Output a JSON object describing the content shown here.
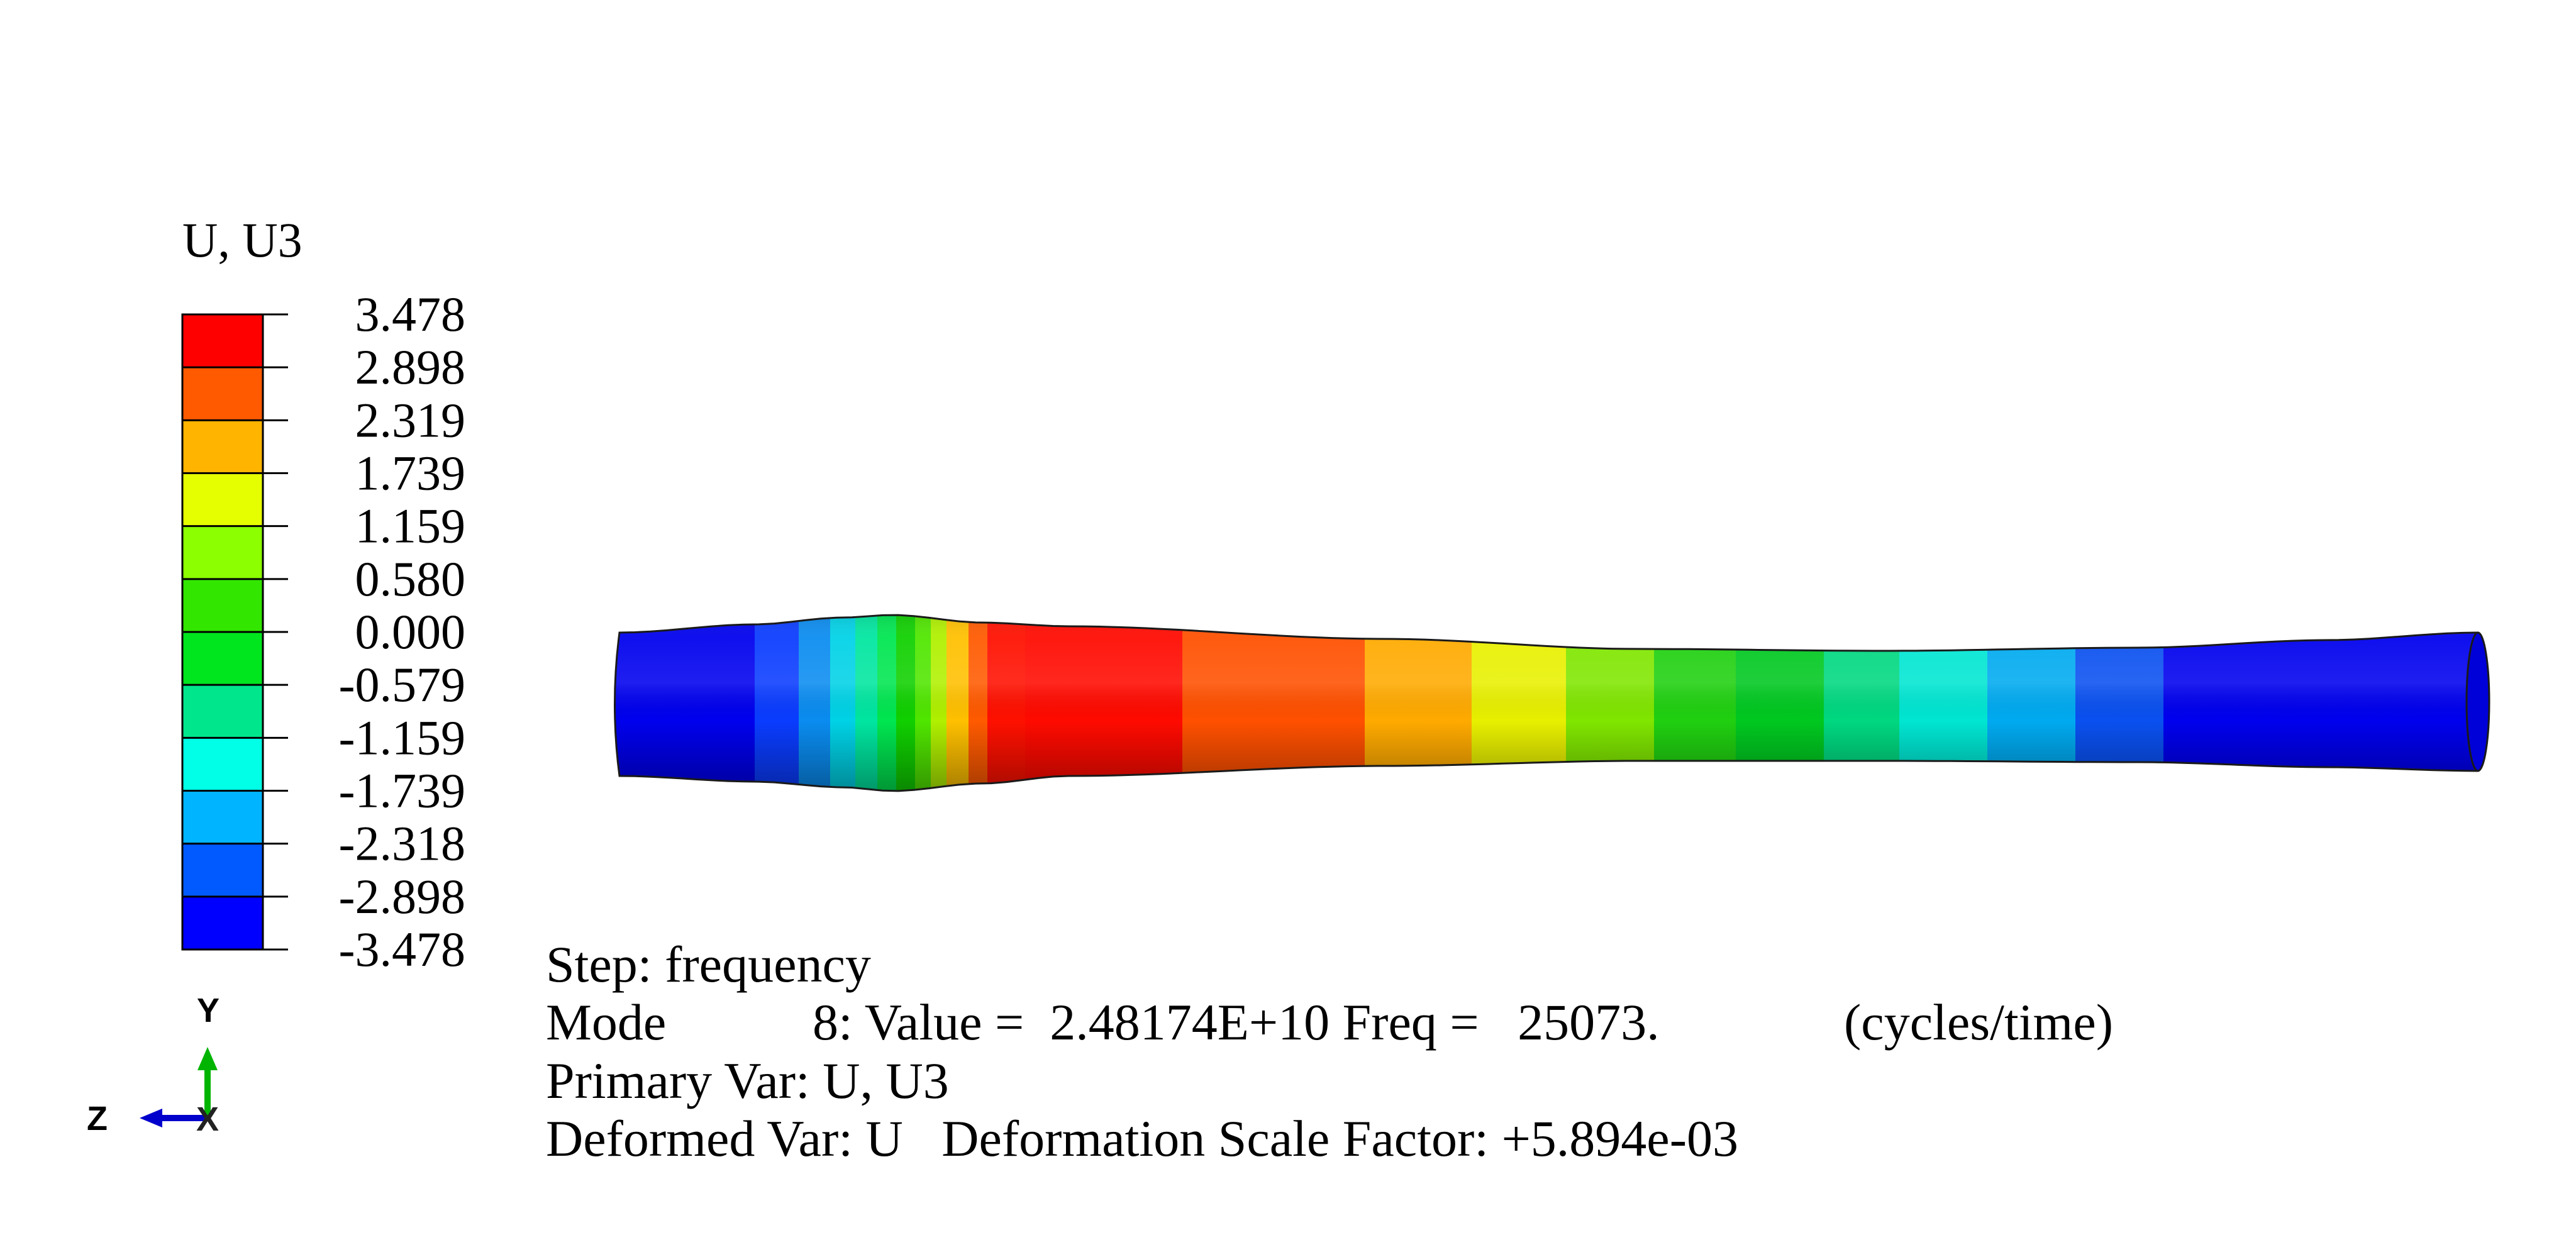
{
  "legend": {
    "title": "U, U3",
    "tick_labels": [
      "3.478",
      "2.898",
      "2.319",
      "1.739",
      "1.159",
      "0.580",
      "0.000",
      "-0.579",
      "-1.159",
      "-1.739",
      "-2.318",
      "-2.898",
      "-3.478"
    ],
    "band_colors": [
      "#ff0000",
      "#ff5a00",
      "#ffb400",
      "#e6ff00",
      "#8cff00",
      "#32e600",
      "#00e61e",
      "#00e68c",
      "#00ffe6",
      "#00b4ff",
      "#005aff",
      "#0000ff"
    ]
  },
  "info": {
    "step": "Step: frequency",
    "mode_label": "Mode",
    "mode_value": "8: Value =  2.48174E+10 Freq =   25073.",
    "mode_units": "(cycles/time)",
    "primary_var": "Primary Var: U, U3",
    "deformed_var": "Deformed Var: U   Deformation Scale Factor: +5.894e-03"
  },
  "triad": {
    "y_label": "Y",
    "z_label": "Z",
    "x_label": "X",
    "colors": {
      "y": "#00b400",
      "z": "#0000cc",
      "x": "#cc0000"
    }
  },
  "beam": {
    "band_colors": [
      "#0000ee",
      "#0a3cff",
      "#0a8cf0",
      "#00d2e6",
      "#00e6a0",
      "#00e650",
      "#10d000",
      "#50e600",
      "#b0f000",
      "#ffc000",
      "#ff5a00",
      "#ff1000",
      "#ff0a00",
      "#ff5000",
      "#ffaa00",
      "#e8f000",
      "#80e600",
      "#20d010",
      "#00c820",
      "#00d880",
      "#00e6d2",
      "#00aaf0",
      "#0a50f0",
      "#0000ee"
    ]
  }
}
